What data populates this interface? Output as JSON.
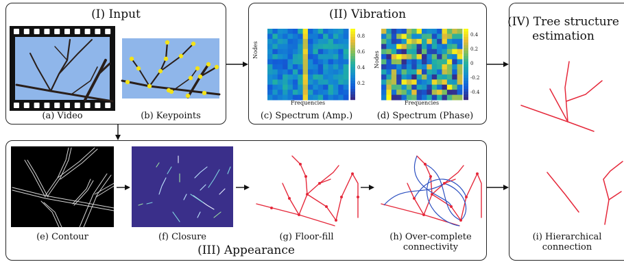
{
  "panels": {
    "input": "(I) Input",
    "vibration": "(II) Vibration",
    "appearance": "(III) Appearance",
    "tree_line1": "(IV) Tree structure",
    "tree_line2": "estimation"
  },
  "captions": {
    "a": "(a) Video",
    "b": "(b) Keypoints",
    "c": "(c) Spectrum (Amp.)",
    "d": "(d) Spectrum (Phase)",
    "e": "(e) Contour",
    "f": "(f) Closure",
    "g": "(g) Floor-fill",
    "h1": "(h) Over-complete",
    "h2": "connectivity",
    "i1": "(i) Hierarchical",
    "i2": "connection"
  },
  "heatmap_amp": {
    "ylabel": "Nodes",
    "xlabel": "Frequencies",
    "colorbar_ticks": [
      "0.8",
      "0.6",
      "0.4",
      "0.2"
    ]
  },
  "heatmap_phase": {
    "ylabel": "Nodes",
    "xlabel": "Frequencies",
    "colorbar_ticks": [
      "0.4",
      "0.2",
      "0",
      "-0.2",
      "-0.4"
    ]
  },
  "colors": {
    "sky": "#8fb6ea",
    "branch": "#2a1f1a",
    "keypoint": "#f2e21a",
    "closure_bg": "#3a2f8a",
    "red": "#e5283a",
    "blue": "#2b4fc0"
  }
}
